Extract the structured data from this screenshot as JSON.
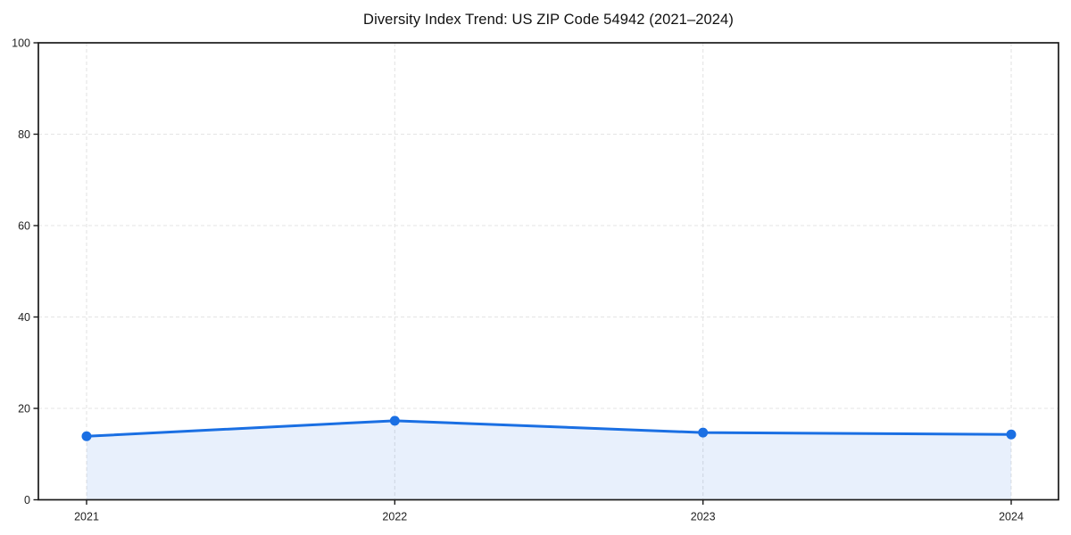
{
  "chart_data": {
    "type": "area",
    "title": "Diversity Index Trend: US ZIP Code 54942 (2021–2024)",
    "categories": [
      "2021",
      "2022",
      "2023",
      "2024"
    ],
    "series": [
      {
        "name": "Diversity Index",
        "values": [
          13.9,
          17.3,
          14.7,
          14.3
        ]
      }
    ],
    "xlabel": "",
    "ylabel": "",
    "ylim": [
      0,
      100
    ],
    "yticks": [
      0,
      20,
      40,
      60,
      80,
      100
    ],
    "grid": "dashed-both-axes",
    "legend": "none",
    "marker": "circle",
    "colors": {
      "line": "#1a6fe3",
      "marker": "#1a6fe3",
      "fill": "#1a6fe3",
      "fill_opacity": 0.1,
      "grid": "#e4e4e4",
      "axis": "#1a1a1a",
      "tick_text": "#222222",
      "title_text": "#111111",
      "background": "#ffffff"
    }
  }
}
